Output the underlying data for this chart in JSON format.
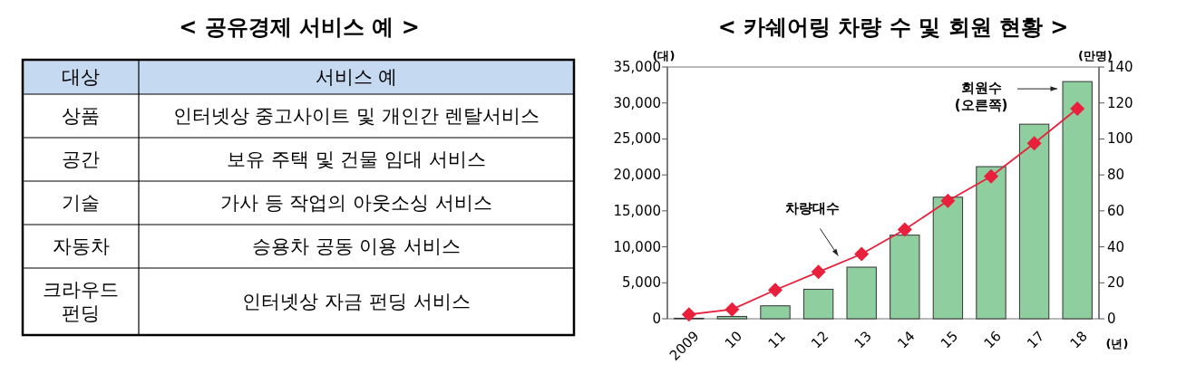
{
  "chart_data": [
    {
      "type": "other",
      "title": "< 공유경제 서비스 예 >",
      "categories": [
        "대상",
        "서비스 예"
      ],
      "annotations": [
        "상품",
        "인터넷상 중고사이트 및 개인간 렌탈서비스",
        "공간",
        "보유 주택 및 건물 임대 서비스",
        "기술",
        "가사 등 작업의 아웃소싱 서비스",
        "자동차",
        "승용차 공동 이용 서비스",
        "크라우드 펀딩",
        "인터넷상 자금 펀딩 서비스"
      ]
    },
    {
      "type": "bar",
      "title": "< 카쉐어링 차량 수 및 회원 현황 >",
      "categories": [
        "2009",
        "10",
        "11",
        "12",
        "13",
        "14",
        "15",
        "16",
        "17",
        "18"
      ],
      "series": [
        {
          "name": "회원수 (오른쪽)",
          "type": "bar",
          "axis": "y2",
          "color": "#8fce9f",
          "values": [
            0.3,
            1.3,
            7.2,
            16.4,
            28.7,
            46.5,
            67.6,
            84.6,
            108.2,
            131.9
          ]
        },
        {
          "name": "차량대수",
          "type": "line",
          "axis": "y",
          "color": "#e8203c",
          "marker": "diamond",
          "values": [
            600,
            1300,
            4000,
            6500,
            9000,
            12400,
            16400,
            19800,
            24400,
            29200
          ]
        }
      ],
      "ylabel": "(대)",
      "y2label": "(만명)",
      "xlabel": "(년)",
      "ylim": [
        0,
        35000
      ],
      "yticks": [
        0,
        {
          "value": 5000,
          "label": "5,000"
        },
        {
          "value": 10000,
          "label": "10,000"
        },
        {
          "value": 15000,
          "label": "15,000"
        },
        {
          "value": 20000,
          "label": "20,000"
        },
        {
          "value": 25000,
          "label": "25,000"
        },
        {
          "value": 30000,
          "label": "30,000"
        },
        {
          "value": 35000,
          "label": "35,000"
        }
      ],
      "y2lim": [
        0,
        140
      ],
      "y2ticks": [
        0,
        20,
        40,
        60,
        80,
        100,
        120,
        140
      ]
    }
  ]
}
